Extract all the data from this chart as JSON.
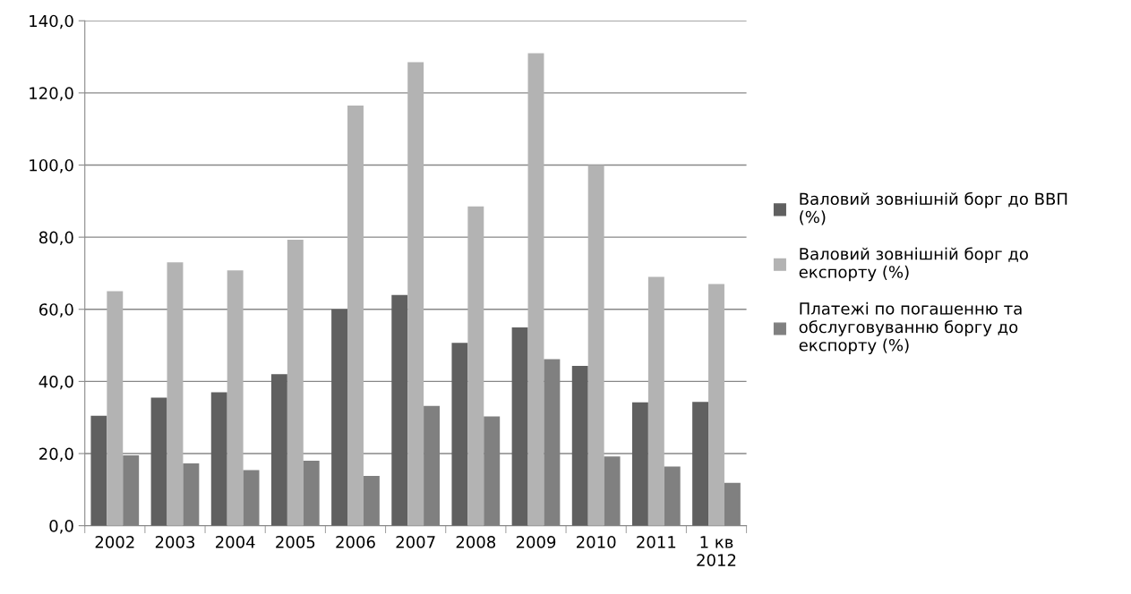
{
  "chart_data": {
    "type": "bar",
    "categories": [
      "2002",
      "2003",
      "2004",
      "2005",
      "2006",
      "2007",
      "2008",
      "2009",
      "2010",
      "2011",
      "1 кв\n2012"
    ],
    "series": [
      {
        "name": "Валовий зовнішній борг до ВВП\n(%)",
        "color": "#606060",
        "values": [
          30.5,
          35.5,
          37.0,
          42.0,
          60.0,
          64.0,
          50.7,
          55.0,
          44.3,
          34.2,
          34.3
        ]
      },
      {
        "name": "Валовий зовнішній борг до\nекспорту (%)",
        "color": "#b3b3b3",
        "values": [
          65.0,
          73.0,
          70.8,
          79.3,
          116.5,
          128.5,
          88.5,
          131.0,
          100.0,
          69.0,
          67.0
        ]
      },
      {
        "name": "Платежі по погашенню та\nобслуговуванню боргу до\nекспорту (%)",
        "color": "#808080",
        "values": [
          19.5,
          17.3,
          15.4,
          18.0,
          13.8,
          33.2,
          30.3,
          46.2,
          19.2,
          16.4,
          11.9
        ]
      }
    ],
    "ylim": [
      0,
      140
    ],
    "yticks": [
      {
        "value": 0,
        "label": "0,0"
      },
      {
        "value": 20,
        "label": "20,0"
      },
      {
        "value": 40,
        "label": "40,0"
      },
      {
        "value": 60,
        "label": "60,0"
      },
      {
        "value": 80,
        "label": "80,0"
      },
      {
        "value": 100,
        "label": "100,0"
      },
      {
        "value": 120,
        "label": "120,0"
      },
      {
        "value": 140,
        "label": "140,0"
      }
    ],
    "grid": "y",
    "legend": "right"
  }
}
